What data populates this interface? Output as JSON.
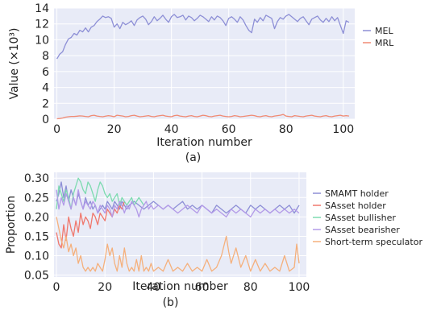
{
  "chart_data": [
    {
      "type": "line",
      "caption": "(a)",
      "xlabel": "Iteration number",
      "ylabel": "Value (×10³)",
      "xlim": [
        -1,
        104
      ],
      "ylim": [
        0,
        14
      ],
      "xticks": [
        0,
        20,
        40,
        60,
        80,
        100
      ],
      "yticks": [
        0,
        2,
        4,
        6,
        8,
        10,
        12,
        14
      ],
      "x": [
        0,
        1,
        2,
        3,
        4,
        5,
        6,
        7,
        8,
        9,
        10,
        11,
        12,
        13,
        14,
        15,
        16,
        17,
        18,
        19,
        20,
        21,
        22,
        23,
        24,
        25,
        26,
        27,
        28,
        29,
        30,
        31,
        32,
        33,
        34,
        35,
        36,
        37,
        38,
        39,
        40,
        41,
        42,
        43,
        44,
        45,
        46,
        47,
        48,
        49,
        50,
        51,
        52,
        53,
        54,
        55,
        56,
        57,
        58,
        59,
        60,
        61,
        62,
        63,
        64,
        65,
        66,
        67,
        68,
        69,
        70,
        71,
        72,
        73,
        74,
        75,
        76,
        77,
        78,
        79,
        80,
        81,
        82,
        83,
        84,
        85,
        86,
        87,
        88,
        89,
        90,
        91,
        92,
        93,
        94,
        95,
        96,
        97,
        98,
        99,
        100,
        101,
        102
      ],
      "legend_position": "right",
      "grid": true,
      "series": [
        {
          "name": "MEL",
          "color": "#8d8fd6",
          "values": [
            7.6,
            8.2,
            8.5,
            9.4,
            10.1,
            10.3,
            10.8,
            10.6,
            11.2,
            11.0,
            11.5,
            11.0,
            11.6,
            11.8,
            12.3,
            12.6,
            13.0,
            12.8,
            12.9,
            12.7,
            11.6,
            12.0,
            11.4,
            12.2,
            11.9,
            12.1,
            12.4,
            11.8,
            12.5,
            12.8,
            13.0,
            12.6,
            11.9,
            12.3,
            12.9,
            12.4,
            12.7,
            13.1,
            12.6,
            12.2,
            12.9,
            13.2,
            12.8,
            12.9,
            13.1,
            12.5,
            13.0,
            12.8,
            12.4,
            12.7,
            13.1,
            12.9,
            12.6,
            12.3,
            12.9,
            12.5,
            13.0,
            12.8,
            12.4,
            11.8,
            12.7,
            12.9,
            12.6,
            12.2,
            12.9,
            12.5,
            11.8,
            11.2,
            10.9,
            12.6,
            12.2,
            12.8,
            12.4,
            13.1,
            12.9,
            12.7,
            11.4,
            12.3,
            12.8,
            12.6,
            13.0,
            13.2,
            12.9,
            12.6,
            12.3,
            12.7,
            12.9,
            12.4,
            11.9,
            12.6,
            12.8,
            13.0,
            12.5,
            12.2,
            12.7,
            12.3,
            12.9,
            12.4,
            12.8,
            11.8,
            10.8,
            12.4,
            12.2
          ]
        },
        {
          "name": "MRL",
          "color": "#f08a73",
          "values": [
            0.05,
            0.08,
            0.15,
            0.25,
            0.3,
            0.35,
            0.35,
            0.38,
            0.42,
            0.4,
            0.35,
            0.3,
            0.45,
            0.5,
            0.4,
            0.35,
            0.3,
            0.38,
            0.45,
            0.4,
            0.3,
            0.5,
            0.45,
            0.4,
            0.3,
            0.35,
            0.45,
            0.5,
            0.4,
            0.3,
            0.35,
            0.4,
            0.45,
            0.35,
            0.3,
            0.4,
            0.45,
            0.5,
            0.4,
            0.35,
            0.3,
            0.45,
            0.5,
            0.4,
            0.35,
            0.3,
            0.4,
            0.45,
            0.35,
            0.3,
            0.4,
            0.5,
            0.45,
            0.35,
            0.3,
            0.4,
            0.45,
            0.5,
            0.4,
            0.35,
            0.3,
            0.35,
            0.45,
            0.4,
            0.3,
            0.35,
            0.4,
            0.45,
            0.5,
            0.45,
            0.35,
            0.3,
            0.4,
            0.45,
            0.35,
            0.3,
            0.4,
            0.45,
            0.5,
            0.6,
            0.4,
            0.35,
            0.3,
            0.45,
            0.4,
            0.35,
            0.3,
            0.4,
            0.45,
            0.5,
            0.4,
            0.35,
            0.3,
            0.4,
            0.45,
            0.35,
            0.3,
            0.4,
            0.45,
            0.5,
            0.4,
            0.45,
            0.4
          ]
        }
      ]
    },
    {
      "type": "line",
      "caption": "(b)",
      "xlabel": "Iteration number",
      "ylabel": "Proportion",
      "xlim": [
        -1,
        103
      ],
      "ylim": [
        0.045,
        0.315
      ],
      "xticks": [
        0,
        20,
        40,
        60,
        80,
        100
      ],
      "yticks": [
        0.05,
        0.1,
        0.15,
        0.2,
        0.25,
        0.3
      ],
      "ytick_labels": [
        "0.05",
        "0.10",
        "0.15",
        "0.20",
        "0.25",
        "0.30"
      ],
      "legend_position": "right",
      "grid": true,
      "series": [
        {
          "name": "SMAMT holder",
          "color": "#8d8fd6",
          "x": [
            0,
            1,
            2,
            3,
            4,
            5,
            6,
            7,
            8,
            9,
            10,
            11,
            12,
            13,
            14,
            15,
            16,
            17,
            18,
            19,
            20,
            21,
            22,
            23,
            24,
            25,
            26,
            27,
            28,
            29,
            30,
            32,
            34,
            36,
            38,
            40,
            42,
            44,
            46,
            48,
            50,
            52,
            54,
            56,
            58,
            60,
            62,
            64,
            66,
            68,
            70,
            72,
            74,
            76,
            78,
            80,
            82,
            84,
            86,
            88,
            90,
            92,
            94,
            96,
            98,
            100
          ],
          "values": [
            0.24,
            0.26,
            0.29,
            0.25,
            0.28,
            0.24,
            0.27,
            0.25,
            0.23,
            0.26,
            0.24,
            0.22,
            0.25,
            0.23,
            0.24,
            0.22,
            0.23,
            0.21,
            0.22,
            0.23,
            0.22,
            0.24,
            0.23,
            0.22,
            0.24,
            0.23,
            0.22,
            0.24,
            0.23,
            0.22,
            0.23,
            0.24,
            0.23,
            0.22,
            0.23,
            0.24,
            0.23,
            0.22,
            0.23,
            0.22,
            0.23,
            0.24,
            0.22,
            0.23,
            0.22,
            0.23,
            0.22,
            0.21,
            0.23,
            0.22,
            0.21,
            0.22,
            0.23,
            0.22,
            0.21,
            0.23,
            0.22,
            0.23,
            0.22,
            0.21,
            0.22,
            0.23,
            0.22,
            0.23,
            0.21,
            0.23
          ]
        },
        {
          "name": "SAsset holder",
          "color": "#f0786d",
          "x": [
            0,
            1,
            2,
            3,
            4,
            5,
            6,
            7,
            8,
            9,
            10,
            11,
            12,
            13,
            14,
            15,
            16,
            17,
            18,
            19,
            20,
            21,
            22,
            23,
            24,
            25,
            26,
            27,
            28
          ],
          "values": [
            0.16,
            0.13,
            0.12,
            0.18,
            0.14,
            0.2,
            0.17,
            0.15,
            0.19,
            0.16,
            0.21,
            0.18,
            0.2,
            0.19,
            0.17,
            0.21,
            0.2,
            0.18,
            0.21,
            0.2,
            0.19,
            0.22,
            0.21,
            0.2,
            0.22,
            0.21,
            0.23,
            0.22,
            0.24
          ]
        },
        {
          "name": "SAsset bullisher",
          "color": "#7ddbb0",
          "x": [
            0,
            1,
            2,
            3,
            4,
            5,
            6,
            7,
            8,
            9,
            10,
            11,
            12,
            13,
            14,
            15,
            16,
            17,
            18,
            19,
            20,
            21,
            22,
            23,
            24,
            25,
            26,
            27,
            28,
            29,
            30,
            31,
            32,
            33,
            34,
            35,
            36
          ],
          "values": [
            0.22,
            0.28,
            0.26,
            0.24,
            0.27,
            0.25,
            0.22,
            0.26,
            0.28,
            0.3,
            0.29,
            0.27,
            0.26,
            0.29,
            0.28,
            0.26,
            0.24,
            0.27,
            0.29,
            0.28,
            0.26,
            0.25,
            0.26,
            0.24,
            0.25,
            0.26,
            0.23,
            0.25,
            0.24,
            0.23,
            0.24,
            0.25,
            0.23,
            0.24,
            0.25,
            0.24,
            0.23
          ]
        },
        {
          "name": "SAsset bearisher",
          "color": "#b39ae8",
          "x": [
            0,
            1,
            2,
            3,
            4,
            5,
            6,
            7,
            8,
            9,
            10,
            11,
            12,
            13,
            14,
            15,
            16,
            17,
            18,
            19,
            20,
            21,
            22,
            23,
            24,
            25,
            26,
            27,
            28,
            29,
            30,
            31,
            32,
            33,
            34,
            35,
            36,
            37,
            38,
            39,
            40,
            42,
            44,
            46,
            48,
            50,
            52,
            54,
            56,
            58,
            60,
            62,
            64,
            66,
            68,
            70,
            72,
            74,
            76,
            78,
            80,
            82,
            84,
            86,
            88,
            90,
            92,
            94,
            96,
            98,
            100
          ],
          "values": [
            0.27,
            0.22,
            0.25,
            0.23,
            0.26,
            0.24,
            0.22,
            0.25,
            0.23,
            0.27,
            0.24,
            0.22,
            0.24,
            0.23,
            0.22,
            0.24,
            0.23,
            0.21,
            0.23,
            0.22,
            0.21,
            0.23,
            0.22,
            0.2,
            0.23,
            0.22,
            0.24,
            0.23,
            0.21,
            0.23,
            0.22,
            0.24,
            0.23,
            0.22,
            0.2,
            0.22,
            0.23,
            0.24,
            0.22,
            0.23,
            0.22,
            0.23,
            0.22,
            0.23,
            0.22,
            0.21,
            0.22,
            0.23,
            0.22,
            0.21,
            0.23,
            0.22,
            0.21,
            0.22,
            0.21,
            0.2,
            0.22,
            0.21,
            0.22,
            0.21,
            0.2,
            0.22,
            0.21,
            0.22,
            0.21,
            0.22,
            0.21,
            0.22,
            0.21,
            0.22,
            0.21
          ]
        },
        {
          "name": "Short-term speculator",
          "color": "#f5b07c",
          "x": [
            0,
            1,
            2,
            3,
            4,
            5,
            6,
            7,
            8,
            9,
            10,
            11,
            12,
            13,
            14,
            15,
            16,
            17,
            18,
            19,
            20,
            21,
            22,
            23,
            24,
            25,
            26,
            27,
            28,
            29,
            30,
            31,
            32,
            33,
            34,
            35,
            36,
            37,
            38,
            39,
            40,
            42,
            44,
            46,
            48,
            50,
            52,
            54,
            56,
            58,
            60,
            62,
            64,
            66,
            68,
            70,
            71,
            72,
            74,
            76,
            78,
            80,
            82,
            84,
            86,
            88,
            90,
            92,
            94,
            96,
            98,
            99,
            100
          ],
          "values": [
            0.2,
            0.17,
            0.14,
            0.12,
            0.15,
            0.11,
            0.13,
            0.1,
            0.12,
            0.08,
            0.1,
            0.07,
            0.06,
            0.07,
            0.06,
            0.07,
            0.06,
            0.08,
            0.07,
            0.06,
            0.09,
            0.13,
            0.1,
            0.12,
            0.08,
            0.06,
            0.1,
            0.07,
            0.12,
            0.08,
            0.06,
            0.07,
            0.06,
            0.09,
            0.06,
            0.1,
            0.06,
            0.07,
            0.06,
            0.08,
            0.06,
            0.07,
            0.06,
            0.09,
            0.06,
            0.07,
            0.06,
            0.08,
            0.06,
            0.07,
            0.06,
            0.09,
            0.06,
            0.07,
            0.1,
            0.15,
            0.11,
            0.08,
            0.12,
            0.07,
            0.1,
            0.06,
            0.09,
            0.06,
            0.08,
            0.06,
            0.07,
            0.06,
            0.1,
            0.06,
            0.07,
            0.13,
            0.08
          ]
        }
      ]
    }
  ]
}
